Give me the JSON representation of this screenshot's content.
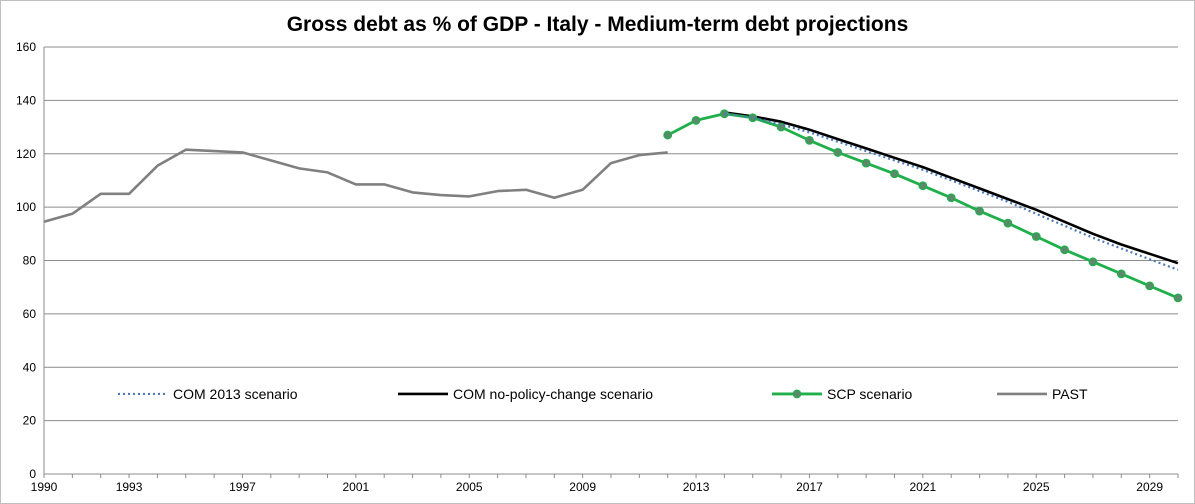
{
  "chart_data": {
    "type": "line",
    "title": "Gross debt as % of GDP - Italy - Medium-term debt projections",
    "xlabel": "",
    "ylabel": "",
    "xlim": [
      1990,
      2030
    ],
    "ylim": [
      0,
      160
    ],
    "y_ticks": [
      0,
      20,
      40,
      60,
      80,
      100,
      120,
      140,
      160
    ],
    "x_tick_labels": [
      "1990",
      "1993",
      "1997",
      "2001",
      "2005",
      "2009",
      "2013",
      "2017",
      "2021",
      "2025",
      "2029"
    ],
    "grid": "horizontal",
    "legend_placement": "bottom-inside",
    "series": [
      {
        "name": "COM 2013 scenario",
        "color": "#4a78b8",
        "style": "dotted",
        "x": [
          2014,
          2015,
          2016,
          2017,
          2018,
          2019,
          2020,
          2021,
          2022,
          2023,
          2024,
          2025,
          2026,
          2027,
          2028,
          2029,
          2030
        ],
        "y": [
          135,
          133.5,
          131,
          128,
          124.5,
          121,
          117.5,
          114,
          110,
          106,
          102,
          97.5,
          93,
          88.5,
          84.5,
          80.5,
          76.5
        ]
      },
      {
        "name": "COM no-policy-change scenario",
        "color": "#000000",
        "style": "solid",
        "x": [
          2014,
          2015,
          2016,
          2017,
          2018,
          2019,
          2020,
          2021,
          2022,
          2023,
          2024,
          2025,
          2026,
          2027,
          2028,
          2029,
          2030
        ],
        "y": [
          135.5,
          134,
          132,
          129,
          125.5,
          122,
          118.5,
          115,
          111,
          107,
          103,
          99,
          94.5,
          90,
          86,
          82.5,
          79
        ]
      },
      {
        "name": "SCP scenario",
        "color": "#1fb04b",
        "style": "solid-markers",
        "x": [
          2012,
          2013,
          2014,
          2015,
          2016,
          2017,
          2018,
          2019,
          2020,
          2021,
          2022,
          2023,
          2024,
          2025,
          2026,
          2027,
          2028,
          2029,
          2030
        ],
        "y": [
          127,
          132.5,
          135,
          133.5,
          130,
          125,
          120.5,
          116.5,
          112.5,
          108,
          103.5,
          98.5,
          94,
          89,
          84,
          79.5,
          75,
          70.5,
          66
        ]
      },
      {
        "name": "PAST",
        "color": "#808080",
        "style": "solid",
        "x": [
          1990,
          1991,
          1992,
          1993,
          1994,
          1995,
          1996,
          1997,
          1998,
          1999,
          2000,
          2001,
          2002,
          2003,
          2004,
          2005,
          2006,
          2007,
          2008,
          2009,
          2010,
          2011,
          2012
        ],
        "y": [
          94.5,
          97.5,
          105,
          105,
          115.5,
          121.5,
          121,
          120.5,
          117.5,
          114.5,
          113,
          108.5,
          108.5,
          105.5,
          104.5,
          104,
          106,
          106.5,
          103.5,
          106.5,
          116.5,
          119.5,
          120.5
        ]
      }
    ]
  }
}
